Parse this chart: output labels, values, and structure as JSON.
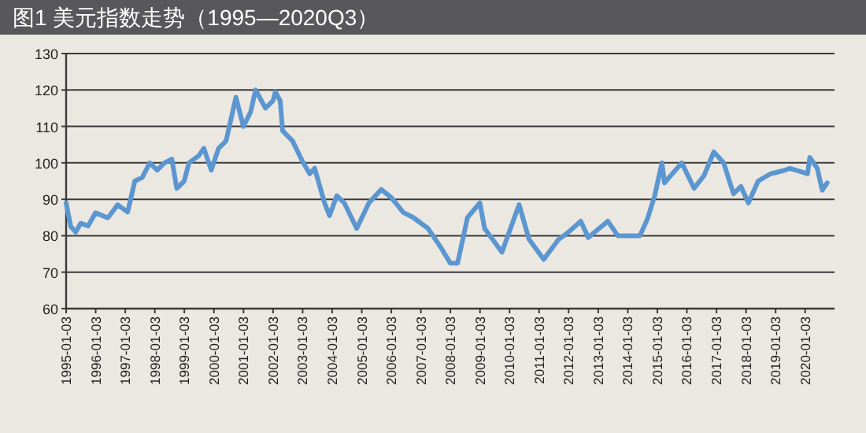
{
  "chart_data": {
    "type": "line",
    "title": "图1 美元指数走势（1995—2020Q3）",
    "x": [
      "1995-01-03",
      "1995-03",
      "1995-05",
      "1995-07",
      "1995-10",
      "1996-01",
      "1996-06",
      "1996-10",
      "1997-02",
      "1997-05",
      "1997-08",
      "1997-11",
      "1998-02",
      "1998-05",
      "1998-08",
      "1998-10",
      "1999-01",
      "1999-03",
      "1999-07",
      "1999-09",
      "1999-12",
      "2000-03",
      "2000-06",
      "2000-08",
      "2000-10",
      "2001-01",
      "2001-04",
      "2001-06",
      "2001-10",
      "2002-01",
      "2002-02",
      "2002-04",
      "2002-05",
      "2002-09",
      "2003-01",
      "2003-04",
      "2003-06",
      "2003-10",
      "2003-12",
      "2004-03",
      "2004-06",
      "2004-11",
      "2005-04",
      "2005-09",
      "2006-01",
      "2006-06",
      "2006-10",
      "2007-04",
      "2007-09",
      "2008-01",
      "2008-04",
      "2008-08",
      "2009-01",
      "2009-03",
      "2009-10",
      "2010-05",
      "2010-09",
      "2011-03",
      "2011-09",
      "2012-01",
      "2012-06",
      "2012-09",
      "2013-05",
      "2013-09",
      "2014-06",
      "2014-09",
      "2014-12",
      "2015-03",
      "2015-04",
      "2015-11",
      "2016-04",
      "2016-08",
      "2016-12",
      "2017-04",
      "2017-08",
      "2017-11",
      "2018-02",
      "2018-06",
      "2018-11",
      "2019-04",
      "2019-07",
      "2020-02",
      "2020-03",
      "2020-06",
      "2020-08",
      "2020-10"
    ],
    "series": [
      {
        "color": "#5b96d0",
        "values": [
          89,
          82.5,
          81,
          83.4,
          82.7,
          86.3,
          84.9,
          88.5,
          86.5,
          95,
          96,
          100,
          98,
          100,
          101,
          93,
          95,
          100,
          102,
          104,
          98,
          104,
          106,
          112,
          118,
          110,
          114,
          120,
          115,
          117,
          119.5,
          117,
          108.8,
          106,
          100.4,
          97,
          98.5,
          89,
          85.5,
          91,
          89,
          82,
          89,
          92.7,
          90.5,
          86.4,
          85,
          82,
          77,
          72.5,
          72.5,
          85,
          89,
          82,
          75.5,
          88.5,
          79,
          73.5,
          79,
          81,
          84,
          79.5,
          84,
          80,
          80,
          84.5,
          91,
          100,
          94.5,
          100,
          93,
          96.5,
          103,
          100,
          91.5,
          93.5,
          89,
          95,
          97,
          97.8,
          98.5,
          97,
          101.5,
          98.5,
          92.5,
          94.5
        ]
      }
    ],
    "xlim": [
      "1995-01-03",
      "2020-12-31"
    ],
    "xticks": [
      "1995-01-03",
      "1996-01-03",
      "1997-01-03",
      "1998-01-03",
      "1999-01-03",
      "2000-01-03",
      "2001-01-03",
      "2002-01-03",
      "2003-01-03",
      "2004-01-03",
      "2005-01-03",
      "2006-01-03",
      "2007-01-03",
      "2008-01-03",
      "2009-01-03",
      "2010-01-03",
      "2011-01-03",
      "2012-01-03",
      "2013-01-03",
      "2014-01-03",
      "2015-01-03",
      "2016-01-03",
      "2017-01-03",
      "2018-01-03",
      "2019-01-03",
      "2020-01-03"
    ],
    "ylim": [
      60,
      130
    ],
    "yticks": [
      60,
      70,
      80,
      90,
      100,
      110,
      120,
      130
    ],
    "grid": "y"
  }
}
